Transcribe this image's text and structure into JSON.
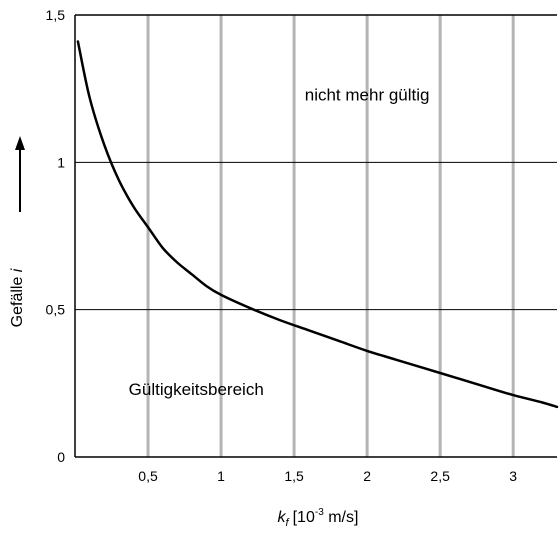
{
  "chart_data": {
    "type": "line",
    "title": "",
    "xlabel": {
      "symbol": "k",
      "subscript": "f",
      "unit_prefix": "[10",
      "unit_exponent": "-3",
      "unit_suffix": " m/s]"
    },
    "ylabel": {
      "text": "Gefälle ",
      "symbol": "i"
    },
    "xlim": [
      0,
      3.3
    ],
    "ylim": [
      0,
      1.5
    ],
    "x_ticks": [
      {
        "value": 0.5,
        "label": "0,5"
      },
      {
        "value": 1,
        "label": "1"
      },
      {
        "value": 1.5,
        "label": "1,5"
      },
      {
        "value": 2,
        "label": "2"
      },
      {
        "value": 2.5,
        "label": "2,5"
      },
      {
        "value": 3,
        "label": "3"
      }
    ],
    "y_ticks": [
      {
        "value": 0,
        "label": "0"
      },
      {
        "value": 0.5,
        "label": "0,5"
      },
      {
        "value": 1,
        "label": "1"
      },
      {
        "value": 1.5,
        "label": "1,5"
      }
    ],
    "grid": true,
    "series": [
      {
        "x": [
          0.02,
          0.1,
          0.2,
          0.3,
          0.4,
          0.5,
          0.6,
          0.7,
          0.8,
          0.9,
          1.0,
          1.2,
          1.4,
          1.6,
          1.8,
          2.0,
          2.2,
          2.4,
          2.6,
          2.8,
          3.0,
          3.2,
          3.3
        ],
        "y": [
          1.41,
          1.22,
          1.06,
          0.94,
          0.85,
          0.78,
          0.71,
          0.66,
          0.62,
          0.58,
          0.55,
          0.505,
          0.465,
          0.43,
          0.395,
          0.36,
          0.33,
          0.3,
          0.27,
          0.24,
          0.21,
          0.185,
          0.17
        ],
        "color": "#000000"
      }
    ],
    "annotations": [
      {
        "text": "nicht mehr gültig",
        "x": 2.0,
        "y": 1.21
      },
      {
        "text": "Gültigkeitsbereich",
        "x": 0.83,
        "y": 0.21
      }
    ]
  }
}
